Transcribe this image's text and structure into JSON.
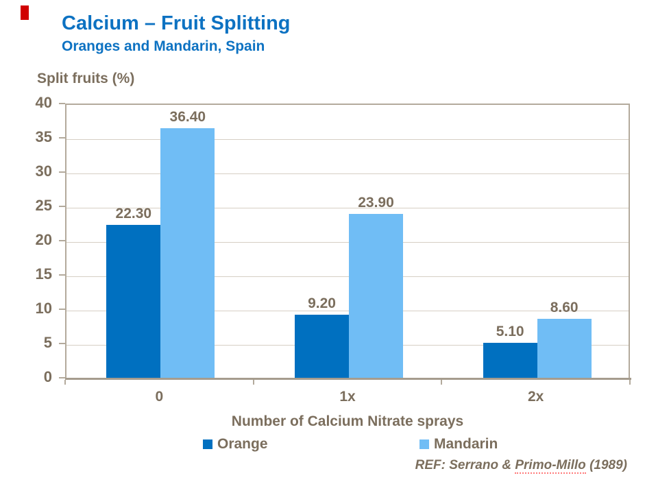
{
  "slide": {
    "title": "Calcium – Fruit Splitting",
    "subtitle": "Oranges and Mandarin, Spain",
    "ref": {
      "prefix": "REF: Serrano & ",
      "underlined": "Primo-Millo",
      "suffix": " (1989)"
    }
  },
  "colors": {
    "title_blue": "#0D72C2",
    "label_brown": "#7B6E5D",
    "axis_line": "#B3AA9C",
    "gridline": "#D6CFC4",
    "red_mark": "#D00000",
    "orange_series": "#0070C0",
    "mandarin_series": "#70BDF5"
  },
  "chart_data": {
    "type": "bar",
    "title": "Calcium – Fruit Splitting",
    "subtitle": "Oranges and Mandarin, Spain",
    "ylabel": "Split fruits (%)",
    "xlabel": "Number of Calcium Nitrate sprays",
    "categories": [
      "0",
      "1x",
      "2x"
    ],
    "series": [
      {
        "name": "Orange",
        "color": "#0070C0",
        "values": [
          22.3,
          9.2,
          5.1
        ]
      },
      {
        "name": "Mandarin",
        "color": "#70BDF5",
        "values": [
          36.4,
          23.9,
          8.6
        ]
      }
    ],
    "value_label_decimals": 2,
    "ylim": [
      0,
      40
    ],
    "ytick_step": 5,
    "grid": true,
    "legend_position": "bottom"
  }
}
